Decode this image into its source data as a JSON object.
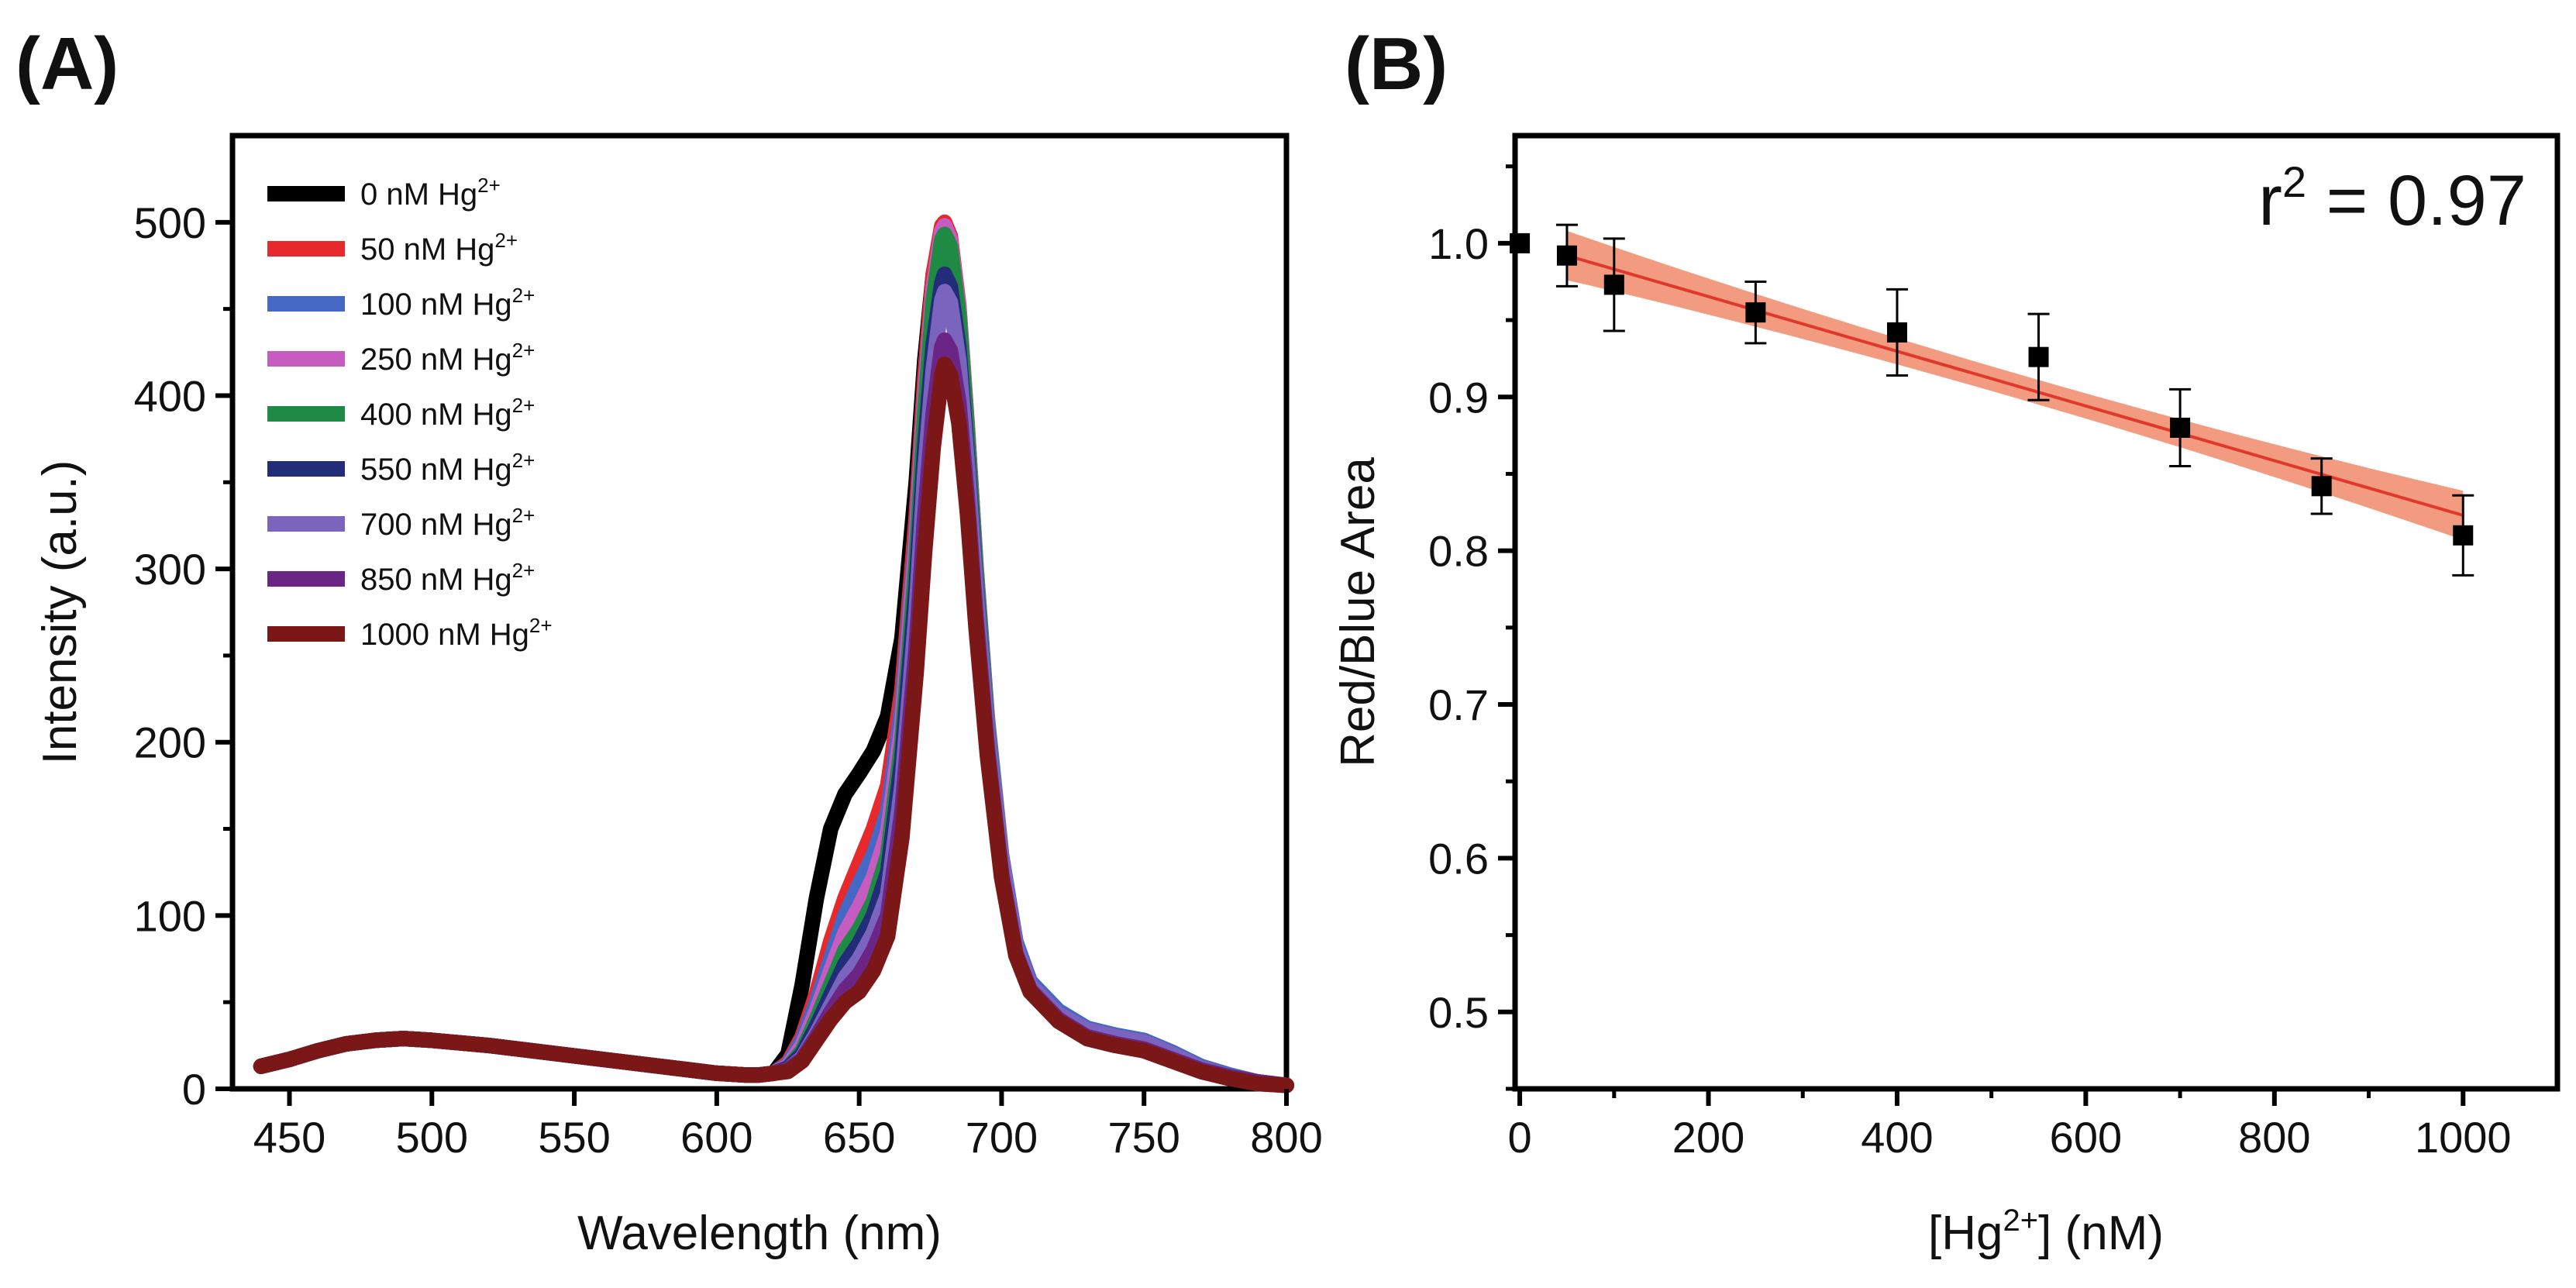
{
  "chart_data": [
    {
      "panel_label": "(A)",
      "type": "line",
      "title": "",
      "xlabel": "Wavelength (nm)",
      "ylabel": "Intensity (a.u.)",
      "xlim": [
        430,
        800
      ],
      "ylim": [
        0,
        550
      ],
      "xticks": [
        450,
        500,
        550,
        600,
        650,
        700,
        750,
        800
      ],
      "yticks": [
        0,
        100,
        200,
        300,
        400,
        500
      ],
      "grid": false,
      "legend_position": "top-left",
      "legend_unit": "nM Hg",
      "legend_sup": "2+",
      "series": [
        {
          "name": "0 nM Hg2+",
          "conc": "0",
          "color": "#000000",
          "x": [
            440,
            450,
            460,
            470,
            480,
            490,
            500,
            520,
            540,
            560,
            580,
            600,
            610,
            615,
            620,
            625,
            630,
            635,
            640,
            645,
            650,
            655,
            660,
            665,
            670,
            673,
            676,
            679,
            680,
            682,
            685,
            688,
            691,
            695,
            700,
            705,
            710,
            720,
            730,
            740,
            750,
            760,
            770,
            780,
            790,
            800
          ],
          "y": [
            13,
            17,
            22,
            26,
            28,
            29,
            28,
            25,
            21,
            17,
            13,
            9,
            8,
            8,
            9,
            20,
            60,
            110,
            150,
            170,
            182,
            195,
            215,
            260,
            350,
            420,
            470,
            495,
            498,
            490,
            450,
            380,
            300,
            210,
            130,
            80,
            58,
            40,
            30,
            27,
            24,
            18,
            12,
            7,
            4,
            2
          ]
        },
        {
          "name": "50 nM Hg2+",
          "conc": "50",
          "color": "#e8292b",
          "x": [
            440,
            450,
            460,
            470,
            480,
            490,
            500,
            520,
            540,
            560,
            580,
            600,
            610,
            615,
            620,
            625,
            630,
            635,
            640,
            645,
            650,
            655,
            660,
            665,
            670,
            673,
            676,
            679,
            680,
            682,
            685,
            688,
            691,
            695,
            700,
            705,
            710,
            720,
            730,
            740,
            750,
            760,
            770,
            780,
            790,
            800
          ],
          "y": [
            13,
            17,
            22,
            26,
            28,
            29,
            28,
            25,
            21,
            17,
            13,
            9,
            8,
            8,
            9,
            15,
            30,
            55,
            85,
            110,
            130,
            150,
            175,
            230,
            330,
            410,
            470,
            498,
            500,
            492,
            452,
            382,
            302,
            212,
            132,
            82,
            60,
            42,
            32,
            28,
            25,
            19,
            12,
            7,
            4,
            2
          ]
        },
        {
          "name": "100 nM Hg2+",
          "conc": "100",
          "color": "#4468c4",
          "x": [
            440,
            450,
            460,
            470,
            480,
            490,
            500,
            520,
            540,
            560,
            580,
            600,
            610,
            615,
            620,
            625,
            630,
            635,
            640,
            645,
            650,
            655,
            660,
            665,
            670,
            673,
            676,
            679,
            680,
            682,
            685,
            688,
            691,
            695,
            700,
            705,
            710,
            720,
            730,
            740,
            750,
            760,
            770,
            780,
            790,
            800
          ],
          "y": [
            13,
            17,
            22,
            26,
            28,
            29,
            28,
            25,
            21,
            17,
            13,
            9,
            8,
            8,
            9,
            14,
            28,
            50,
            75,
            100,
            118,
            135,
            160,
            220,
            320,
            400,
            462,
            492,
            495,
            488,
            450,
            380,
            302,
            214,
            135,
            85,
            62,
            45,
            35,
            31,
            28,
            21,
            13,
            8,
            4,
            2
          ]
        },
        {
          "name": "250 nM Hg2+",
          "conc": "250",
          "color": "#c65bc0",
          "x": [
            440,
            450,
            460,
            470,
            480,
            490,
            500,
            520,
            540,
            560,
            580,
            600,
            610,
            615,
            620,
            625,
            630,
            635,
            640,
            645,
            650,
            655,
            660,
            665,
            670,
            673,
            676,
            679,
            680,
            682,
            685,
            688,
            691,
            695,
            700,
            705,
            710,
            720,
            730,
            740,
            750,
            760,
            770,
            780,
            790,
            800
          ],
          "y": [
            13,
            17,
            22,
            26,
            28,
            29,
            28,
            25,
            21,
            17,
            13,
            9,
            8,
            8,
            9,
            13,
            25,
            45,
            68,
            90,
            105,
            122,
            148,
            210,
            315,
            398,
            462,
            495,
            498,
            490,
            450,
            380,
            300,
            212,
            132,
            82,
            60,
            42,
            32,
            28,
            25,
            19,
            12,
            7,
            4,
            2
          ]
        },
        {
          "name": "400 nM Hg2+",
          "conc": "400",
          "color": "#1e8a43",
          "x": [
            440,
            450,
            460,
            470,
            480,
            490,
            500,
            520,
            540,
            560,
            580,
            600,
            610,
            615,
            620,
            625,
            630,
            635,
            640,
            645,
            650,
            655,
            660,
            665,
            670,
            673,
            676,
            679,
            680,
            682,
            685,
            688,
            691,
            695,
            700,
            705,
            710,
            720,
            730,
            740,
            750,
            760,
            770,
            780,
            790,
            800
          ],
          "y": [
            13,
            17,
            22,
            26,
            28,
            29,
            28,
            25,
            21,
            17,
            13,
            9,
            8,
            8,
            9,
            12,
            22,
            40,
            60,
            80,
            92,
            108,
            135,
            200,
            305,
            390,
            455,
            490,
            493,
            486,
            446,
            378,
            298,
            210,
            130,
            80,
            58,
            40,
            30,
            26,
            23,
            17,
            11,
            7,
            4,
            2
          ]
        },
        {
          "name": "550 nM Hg2+",
          "conc": "550",
          "color": "#232c78",
          "x": [
            440,
            450,
            460,
            470,
            480,
            490,
            500,
            520,
            540,
            560,
            580,
            600,
            610,
            615,
            620,
            625,
            630,
            635,
            640,
            645,
            650,
            655,
            660,
            665,
            670,
            673,
            676,
            679,
            680,
            682,
            685,
            688,
            691,
            695,
            700,
            705,
            710,
            720,
            730,
            740,
            750,
            760,
            770,
            780,
            790,
            800
          ],
          "y": [
            13,
            17,
            22,
            26,
            28,
            29,
            28,
            25,
            21,
            17,
            13,
            9,
            8,
            8,
            9,
            12,
            20,
            36,
            54,
            72,
            84,
            100,
            125,
            190,
            290,
            370,
            430,
            465,
            470,
            463,
            428,
            365,
            290,
            206,
            128,
            79,
            57,
            39,
            29,
            25,
            22,
            16,
            10,
            6,
            3,
            2
          ]
        },
        {
          "name": "700 nM Hg2+",
          "conc": "700",
          "color": "#7a64bd",
          "x": [
            440,
            450,
            460,
            470,
            480,
            490,
            500,
            520,
            540,
            560,
            580,
            600,
            610,
            615,
            620,
            625,
            630,
            635,
            640,
            645,
            650,
            655,
            660,
            665,
            670,
            673,
            676,
            679,
            680,
            682,
            685,
            688,
            691,
            695,
            700,
            705,
            710,
            720,
            730,
            740,
            750,
            760,
            770,
            780,
            790,
            800
          ],
          "y": [
            13,
            17,
            22,
            26,
            28,
            29,
            28,
            25,
            21,
            17,
            13,
            9,
            8,
            8,
            9,
            11,
            18,
            32,
            48,
            64,
            75,
            90,
            112,
            175,
            275,
            355,
            415,
            455,
            460,
            454,
            420,
            360,
            288,
            206,
            130,
            82,
            60,
            43,
            34,
            30,
            27,
            20,
            12,
            7,
            4,
            2
          ]
        },
        {
          "name": "850 nM Hg2+",
          "conc": "850",
          "color": "#6a2585",
          "x": [
            440,
            450,
            460,
            470,
            480,
            490,
            500,
            520,
            540,
            560,
            580,
            600,
            610,
            615,
            620,
            625,
            630,
            635,
            640,
            645,
            650,
            655,
            660,
            665,
            670,
            673,
            676,
            679,
            680,
            682,
            685,
            688,
            691,
            695,
            700,
            705,
            710,
            720,
            730,
            740,
            750,
            760,
            770,
            780,
            790,
            800
          ],
          "y": [
            13,
            17,
            22,
            26,
            28,
            29,
            28,
            25,
            21,
            17,
            13,
            9,
            8,
            8,
            9,
            11,
            17,
            30,
            44,
            57,
            66,
            80,
            100,
            160,
            255,
            330,
            390,
            428,
            432,
            426,
            396,
            340,
            272,
            196,
            124,
            78,
            57,
            40,
            30,
            26,
            23,
            17,
            11,
            7,
            4,
            2
          ]
        },
        {
          "name": "1000 nM Hg2+",
          "conc": "1000",
          "color": "#7b1717",
          "x": [
            440,
            450,
            460,
            470,
            480,
            490,
            500,
            520,
            540,
            560,
            580,
            600,
            610,
            615,
            620,
            625,
            630,
            635,
            640,
            645,
            650,
            655,
            660,
            665,
            670,
            673,
            676,
            679,
            680,
            682,
            685,
            688,
            691,
            695,
            700,
            705,
            710,
            720,
            730,
            740,
            750,
            760,
            770,
            780,
            790,
            800
          ],
          "y": [
            13,
            17,
            22,
            26,
            28,
            29,
            28,
            25,
            21,
            17,
            13,
            9,
            8,
            8,
            9,
            10,
            16,
            28,
            40,
            50,
            56,
            68,
            88,
            145,
            240,
            310,
            370,
            412,
            418,
            412,
            384,
            332,
            266,
            192,
            122,
            77,
            56,
            39,
            29,
            25,
            22,
            16,
            10,
            6,
            3,
            2
          ]
        }
      ]
    },
    {
      "panel_label": "(B)",
      "type": "scatter",
      "title": "",
      "xlabel_prefix": "[Hg",
      "xlabel_sup": "2+",
      "xlabel_suffix": "] (nM)",
      "ylabel": "Red/Blue Area",
      "xlim": [
        -5,
        1100
      ],
      "ylim": [
        0.45,
        1.07
      ],
      "xticks": [
        0,
        200,
        400,
        600,
        800,
        1000
      ],
      "yticks": [
        0.5,
        0.6,
        0.7,
        0.8,
        0.9,
        1.0
      ],
      "ytick_labels": [
        "0.5",
        "0.6",
        "0.7",
        "0.8",
        "0.9",
        "1.0"
      ],
      "grid": false,
      "annotation_prefix": "r",
      "annotation_sup": "2",
      "annotation_suffix": " = 0.97",
      "points": {
        "x": [
          0,
          50,
          100,
          250,
          400,
          550,
          700,
          850,
          1000
        ],
        "y": [
          1.0,
          0.992,
          0.973,
          0.955,
          0.942,
          0.926,
          0.88,
          0.842,
          0.81
        ],
        "err": [
          0,
          0.02,
          0.03,
          0.02,
          0.028,
          0.028,
          0.025,
          0.018,
          0.026
        ],
        "color": "#000000"
      },
      "fit": {
        "x": [
          50,
          1000
        ],
        "y": [
          0.992,
          0.823
        ],
        "color": "#e0392b",
        "band_color": "#f08a6a",
        "band_halfwidth_ends": 0.016,
        "band_halfwidth_mid": 0.008
      }
    }
  ]
}
